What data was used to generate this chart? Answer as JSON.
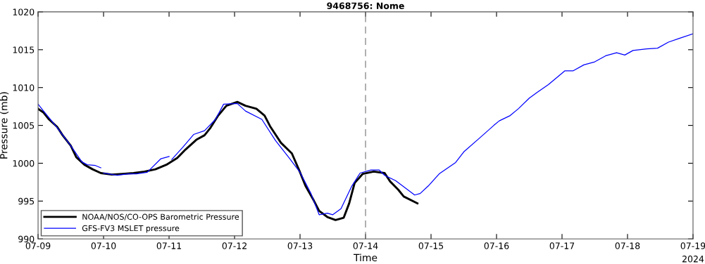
{
  "chart_data": {
    "type": "line",
    "title": "9468756: Nome",
    "xlabel": "Time",
    "ylabel": "Pressure (mb)",
    "xlim": [
      "2024-07-09T00:00",
      "2024-07-19T00:00"
    ],
    "xticks": [
      {
        "value": "2024-07-09T00:00",
        "label": "07-09"
      },
      {
        "value": "2024-07-10T00:00",
        "label": "07-10"
      },
      {
        "value": "2024-07-11T00:00",
        "label": "07-11"
      },
      {
        "value": "2024-07-12T00:00",
        "label": "07-12"
      },
      {
        "value": "2024-07-13T00:00",
        "label": "07-13"
      },
      {
        "value": "2024-07-14T00:00",
        "label": "07-14"
      },
      {
        "value": "2024-07-15T00:00",
        "label": "07-15"
      },
      {
        "value": "2024-07-16T00:00",
        "label": "07-16"
      },
      {
        "value": "2024-07-17T00:00",
        "label": "07-17"
      },
      {
        "value": "2024-07-18T00:00",
        "label": "07-18"
      },
      {
        "value": "2024-07-19T00:00",
        "label": "07-19"
      }
    ],
    "ylim": [
      990,
      1020
    ],
    "yticks": [
      990,
      995,
      1000,
      1005,
      1010,
      1015,
      1020
    ],
    "grid": false,
    "legend": "bottom left",
    "marker": "none",
    "line_style": "solid",
    "annotations": [
      "2024"
    ],
    "ref_lines": [
      {
        "axis": "x",
        "value": "2024-07-14T00:00",
        "label": null,
        "color": "#808080",
        "line_style": "dashed"
      }
    ],
    "series": [
      {
        "name": "NOAA/NOS/CO-OPS Barometric Pressure",
        "color": "#000000",
        "x": [
          "2024-07-09T00:00",
          "2024-07-09T02:00",
          "2024-07-09T04:00",
          "2024-07-09T07:00",
          "2024-07-09T09:00",
          "2024-07-09T12:00",
          "2024-07-09T14:00",
          "2024-07-09T17:00",
          "2024-07-09T20:00",
          "2024-07-09T23:00",
          "2024-07-10T03:00",
          "2024-07-10T07:00",
          "2024-07-10T11:00",
          "2024-07-10T15:00",
          "2024-07-10T19:00",
          "2024-07-10T23:00",
          "2024-07-11T03:00",
          "2024-07-11T06:00",
          "2024-07-11T10:00",
          "2024-07-11T13:00",
          "2024-07-11T15:00",
          "2024-07-11T18:00",
          "2024-07-11T21:00",
          "2024-07-12T01:00",
          "2024-07-12T04:00",
          "2024-07-12T08:00",
          "2024-07-12T11:00",
          "2024-07-12T13:00",
          "2024-07-12T17:00",
          "2024-07-12T21:00",
          "2024-07-13T00:00",
          "2024-07-13T02:00",
          "2024-07-13T05:00",
          "2024-07-13T07:00",
          "2024-07-13T10:00",
          "2024-07-13T13:00",
          "2024-07-13T16:00",
          "2024-07-13T18:00",
          "2024-07-13T20:00",
          "2024-07-13T23:00",
          "2024-07-14T03:00",
          "2024-07-14T07:00",
          "2024-07-14T09:00",
          "2024-07-14T12:00",
          "2024-07-14T14:00",
          "2024-07-14T19:00"
        ],
        "values": [
          1007.2,
          1006.7,
          1005.8,
          1004.8,
          1003.7,
          1002.3,
          1000.8,
          999.8,
          999.2,
          998.7,
          998.5,
          998.6,
          998.7,
          998.9,
          999.2,
          999.8,
          1000.7,
          1001.8,
          1003.1,
          1003.7,
          1004.6,
          1006.3,
          1007.6,
          1008.1,
          1007.6,
          1007.2,
          1006.3,
          1004.9,
          1002.7,
          1001.3,
          998.8,
          997.0,
          995.1,
          993.7,
          992.9,
          992.5,
          992.8,
          994.7,
          997.4,
          998.6,
          998.9,
          998.7,
          997.6,
          996.5,
          995.6,
          994.7
        ]
      },
      {
        "name": "GFS-FV3 MSLET pressure",
        "color": "#0000ff",
        "x": [
          "2024-07-09T00:00",
          "2024-07-09T02:00",
          "2024-07-09T07:00",
          "2024-07-09T12:00",
          "2024-07-09T16:00",
          "2024-07-09T18:00",
          "2024-07-09T21:00",
          "2024-07-09T23:00",
          "2024-07-09T23:30",
          "2024-07-10T00:00",
          "2024-07-10T05:00",
          "2024-07-10T09:00",
          "2024-07-10T12:00",
          "2024-07-10T16:00",
          "2024-07-10T21:00",
          "2024-07-11T00:00",
          "2024-07-11T00:30",
          "2024-07-11T01:00",
          "2024-07-11T05:00",
          "2024-07-11T09:00",
          "2024-07-11T13:00",
          "2024-07-11T17:00",
          "2024-07-11T20:00",
          "2024-07-12T01:00",
          "2024-07-12T04:00",
          "2024-07-12T10:00",
          "2024-07-12T15:00",
          "2024-07-12T20:00",
          "2024-07-13T00:00",
          "2024-07-13T04:00",
          "2024-07-13T07:00",
          "2024-07-13T10:00",
          "2024-07-13T12:00",
          "2024-07-13T15:00",
          "2024-07-13T19:00",
          "2024-07-13T22:00",
          "2024-07-14T02:00",
          "2024-07-14T05:00",
          "2024-07-14T07:00",
          "2024-07-14T11:00",
          "2024-07-14T14:00",
          "2024-07-14T18:00",
          "2024-07-14T20:00",
          "2024-07-14T23:00",
          "2024-07-15T03:00",
          "2024-07-15T09:00",
          "2024-07-15T12:00",
          "2024-07-15T18:00",
          "2024-07-15T23:00",
          "2024-07-16T01:00",
          "2024-07-16T05:00",
          "2024-07-16T08:00",
          "2024-07-16T12:00",
          "2024-07-16T15:00",
          "2024-07-16T19:00",
          "2024-07-17T01:00",
          "2024-07-17T04:00",
          "2024-07-17T08:00",
          "2024-07-17T12:00",
          "2024-07-17T16:00",
          "2024-07-17T20:00",
          "2024-07-17T23:00",
          "2024-07-18T02:00",
          "2024-07-18T07:00",
          "2024-07-18T11:00",
          "2024-07-18T15:00",
          "2024-07-18T19:00",
          "2024-07-19T00:00"
        ],
        "values": [
          1007.8,
          1006.9,
          1004.7,
          1002.3,
          1000.2,
          999.8,
          999.7,
          999.4,
          null,
          998.7,
          998.4,
          998.6,
          998.6,
          998.8,
          1000.6,
          1000.9,
          null,
          1000.5,
          1002.1,
          1003.8,
          1004.3,
          1005.8,
          1007.8,
          1007.9,
          1006.9,
          1005.8,
          1003.0,
          1000.7,
          998.8,
          996.0,
          993.2,
          993.4,
          993.2,
          994.0,
          997.0,
          998.7,
          999.1,
          999.1,
          998.4,
          997.7,
          996.9,
          995.8,
          996.0,
          997.0,
          998.6,
          1000.1,
          1001.5,
          1003.4,
          1005.0,
          1005.6,
          1006.3,
          1007.2,
          1008.6,
          1009.4,
          1010.4,
          1012.2,
          1012.2,
          1013.0,
          1013.4,
          1014.2,
          1014.6,
          1014.3,
          1014.9,
          1015.1,
          1015.2,
          1016.0,
          1016.5,
          1017.1
        ]
      }
    ]
  }
}
